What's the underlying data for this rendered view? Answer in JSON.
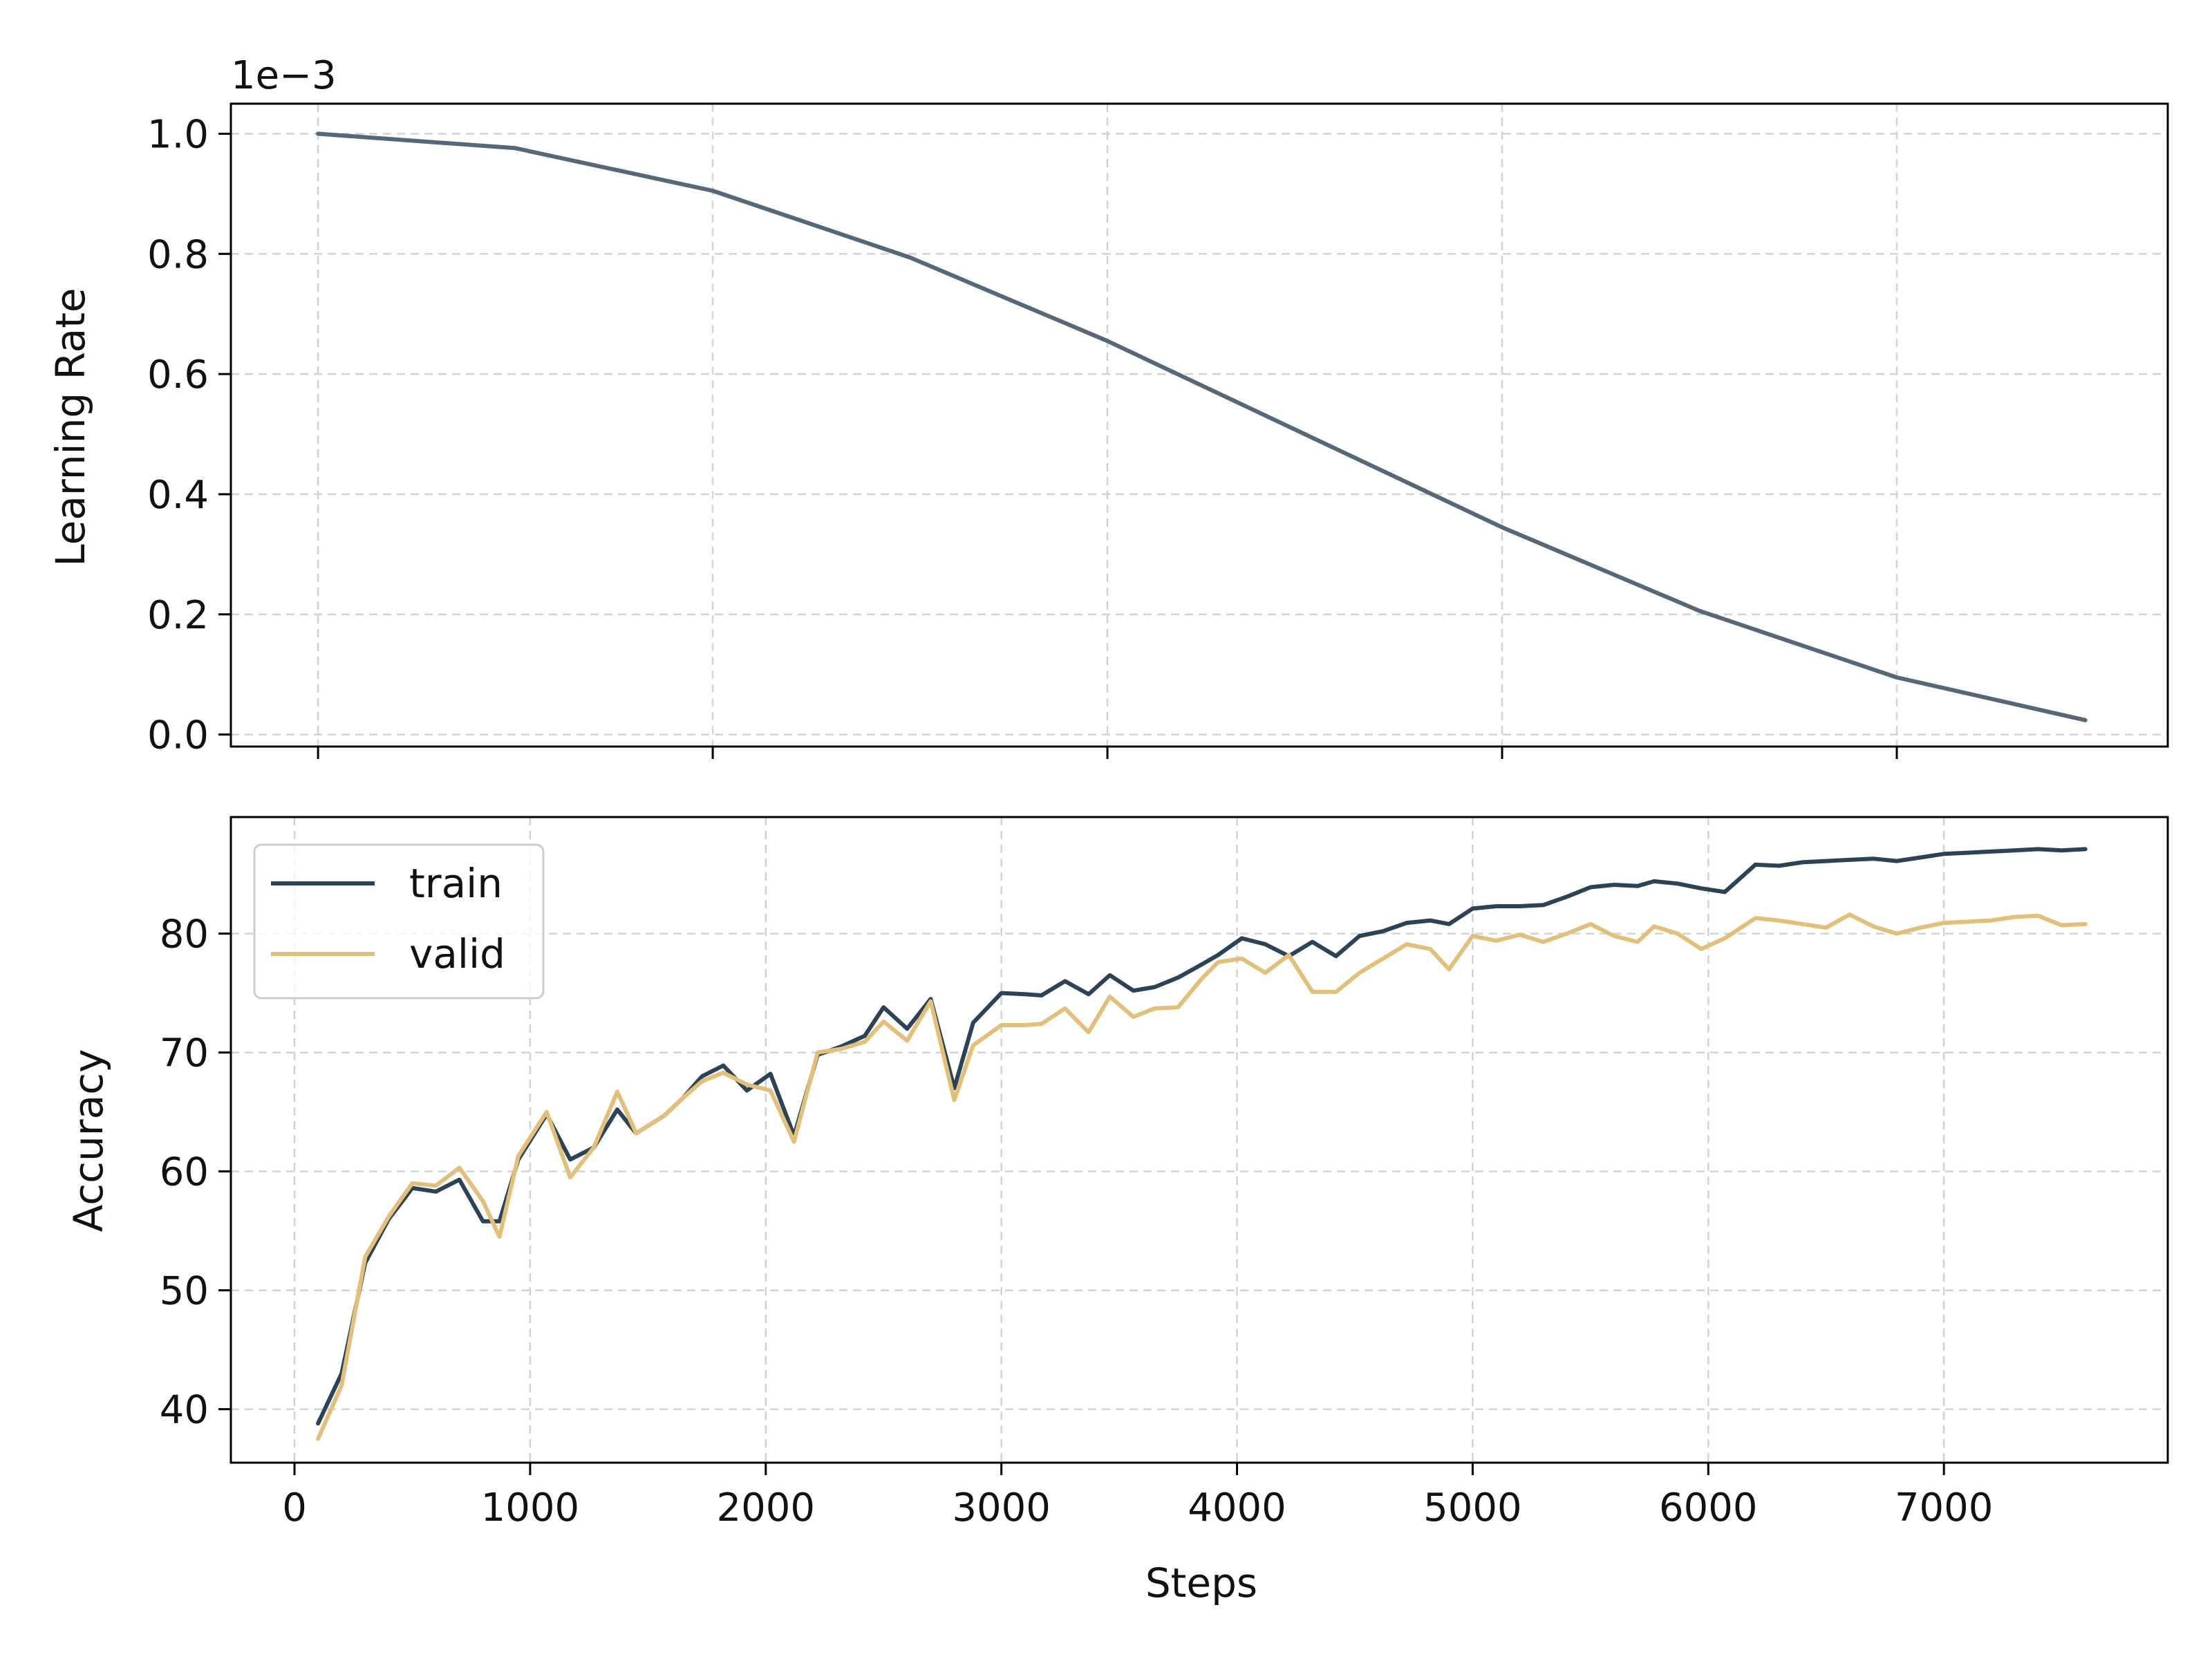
{
  "colors": {
    "lr_line": "#566778",
    "train": "#2c4256",
    "valid": "#e2bf7a",
    "grid": "#d3d3d3",
    "frame": "#000000",
    "background": "#ffffff"
  },
  "chart_data": [
    {
      "type": "line",
      "title": "",
      "xlabel": "",
      "ylabel": "Learning Rate",
      "y_offset_text": "1e−3",
      "xlim": [
        -270,
        7950
      ],
      "ylim": [
        -0.02,
        1.05
      ],
      "x_ticks": [
        {
          "value": 100,
          "label": ""
        },
        {
          "value": 1775,
          "label": ""
        },
        {
          "value": 3450,
          "label": ""
        },
        {
          "value": 5125,
          "label": ""
        },
        {
          "value": 6800,
          "label": ""
        }
      ],
      "y_ticks": [
        {
          "value": 0.0,
          "label": "0.0"
        },
        {
          "value": 0.2,
          "label": "0.2"
        },
        {
          "value": 0.4,
          "label": "0.4"
        },
        {
          "value": 0.6,
          "label": "0.6"
        },
        {
          "value": 0.8,
          "label": "0.8"
        },
        {
          "value": 1.0,
          "label": "1.0"
        }
      ],
      "grid": true,
      "series": [
        {
          "x": [
            100,
            937,
            1775,
            2612,
            3450,
            4287,
            5125,
            5962,
            6800,
            7600
          ],
          "y": [
            1.0,
            0.976,
            0.905,
            0.794,
            0.655,
            0.5,
            0.345,
            0.206,
            0.095,
            0.024
          ]
        }
      ]
    },
    {
      "type": "line",
      "title": "",
      "xlabel": "Steps",
      "ylabel": "Accuracy",
      "xlim": [
        -270,
        7950
      ],
      "ylim": [
        35.5,
        89.8
      ],
      "x_ticks": [
        {
          "value": 0,
          "label": "0"
        },
        {
          "value": 1000,
          "label": "1000"
        },
        {
          "value": 2000,
          "label": "2000"
        },
        {
          "value": 3000,
          "label": "3000"
        },
        {
          "value": 4000,
          "label": "4000"
        },
        {
          "value": 5000,
          "label": "5000"
        },
        {
          "value": 6000,
          "label": "6000"
        },
        {
          "value": 7000,
          "label": "7000"
        }
      ],
      "y_ticks": [
        {
          "value": 40,
          "label": "40"
        },
        {
          "value": 50,
          "label": "50"
        },
        {
          "value": 60,
          "label": "60"
        },
        {
          "value": 70,
          "label": "70"
        },
        {
          "value": 80,
          "label": "80"
        }
      ],
      "grid": true,
      "legend_position": "top-left",
      "series": [
        {
          "name": "train",
          "x": [
            100,
            200,
            300,
            400,
            500,
            600,
            700,
            800,
            870,
            950,
            1070,
            1170,
            1270,
            1370,
            1450,
            1570,
            1650,
            1730,
            1820,
            1920,
            2020,
            2120,
            2220,
            2320,
            2420,
            2500,
            2600,
            2700,
            2800,
            2880,
            3000,
            3100,
            3170,
            3270,
            3370,
            3460,
            3560,
            3650,
            3750,
            3850,
            3920,
            4020,
            4120,
            4220,
            4320,
            4420,
            4520,
            4620,
            4720,
            4820,
            4900,
            5000,
            5100,
            5200,
            5300,
            5400,
            5500,
            5600,
            5700,
            5770,
            5870,
            5970,
            6070,
            6200,
            6300,
            6400,
            6500,
            6600,
            6700,
            6800,
            6900,
            7000,
            7100,
            7200,
            7300,
            7400,
            7500,
            7600
          ],
          "y": [
            38.8,
            43.0,
            52.3,
            56.0,
            58.6,
            58.3,
            59.3,
            55.8,
            55.8,
            61.0,
            64.8,
            61.0,
            62.0,
            65.2,
            63.2,
            64.7,
            66.2,
            68.0,
            68.9,
            66.8,
            68.2,
            63.0,
            69.8,
            70.5,
            71.4,
            73.8,
            72.0,
            74.5,
            67.0,
            72.5,
            75.0,
            74.9,
            74.8,
            76.0,
            74.9,
            76.5,
            75.2,
            75.5,
            76.3,
            77.4,
            78.2,
            79.6,
            79.1,
            78.1,
            79.3,
            78.1,
            79.8,
            80.2,
            80.9,
            81.1,
            80.8,
            82.1,
            82.3,
            82.3,
            82.4,
            83.1,
            83.9,
            84.1,
            84.0,
            84.4,
            84.2,
            83.8,
            83.5,
            85.8,
            85.7,
            86.0,
            86.1,
            86.2,
            86.3,
            86.1,
            86.4,
            86.7,
            86.8,
            86.9,
            87.0,
            87.1,
            87.0,
            87.1
          ]
        },
        {
          "name": "valid",
          "x": [
            100,
            200,
            300,
            400,
            500,
            600,
            700,
            800,
            870,
            950,
            1070,
            1170,
            1270,
            1370,
            1450,
            1570,
            1650,
            1730,
            1820,
            1920,
            2020,
            2120,
            2220,
            2320,
            2420,
            2500,
            2600,
            2700,
            2800,
            2880,
            3000,
            3100,
            3170,
            3270,
            3370,
            3460,
            3560,
            3650,
            3750,
            3850,
            3920,
            4020,
            4120,
            4220,
            4320,
            4420,
            4520,
            4620,
            4720,
            4820,
            4900,
            5000,
            5100,
            5200,
            5300,
            5400,
            5500,
            5600,
            5700,
            5770,
            5870,
            5970,
            6070,
            6200,
            6300,
            6400,
            6500,
            6600,
            6700,
            6800,
            6900,
            7000,
            7100,
            7200,
            7300,
            7400,
            7500,
            7600
          ],
          "y": [
            37.5,
            42.0,
            52.8,
            56.2,
            59.0,
            58.8,
            60.3,
            57.5,
            54.5,
            61.3,
            65.0,
            59.5,
            62.0,
            66.7,
            63.2,
            64.7,
            66.2,
            67.6,
            68.3,
            67.3,
            66.8,
            62.5,
            70.0,
            70.3,
            70.9,
            72.6,
            71.0,
            74.3,
            66.0,
            70.6,
            72.3,
            72.3,
            72.4,
            73.7,
            71.7,
            74.7,
            73.0,
            73.7,
            73.8,
            76.2,
            77.6,
            77.9,
            76.7,
            78.2,
            75.1,
            75.1,
            76.7,
            77.9,
            79.1,
            78.7,
            77.0,
            79.8,
            79.4,
            79.9,
            79.3,
            80.0,
            80.8,
            79.8,
            79.3,
            80.6,
            80.0,
            78.7,
            79.6,
            81.3,
            81.1,
            80.8,
            80.5,
            81.6,
            80.6,
            80.0,
            80.5,
            80.9,
            81.0,
            81.1,
            81.4,
            81.5,
            80.7,
            80.8
          ]
        }
      ]
    }
  ]
}
